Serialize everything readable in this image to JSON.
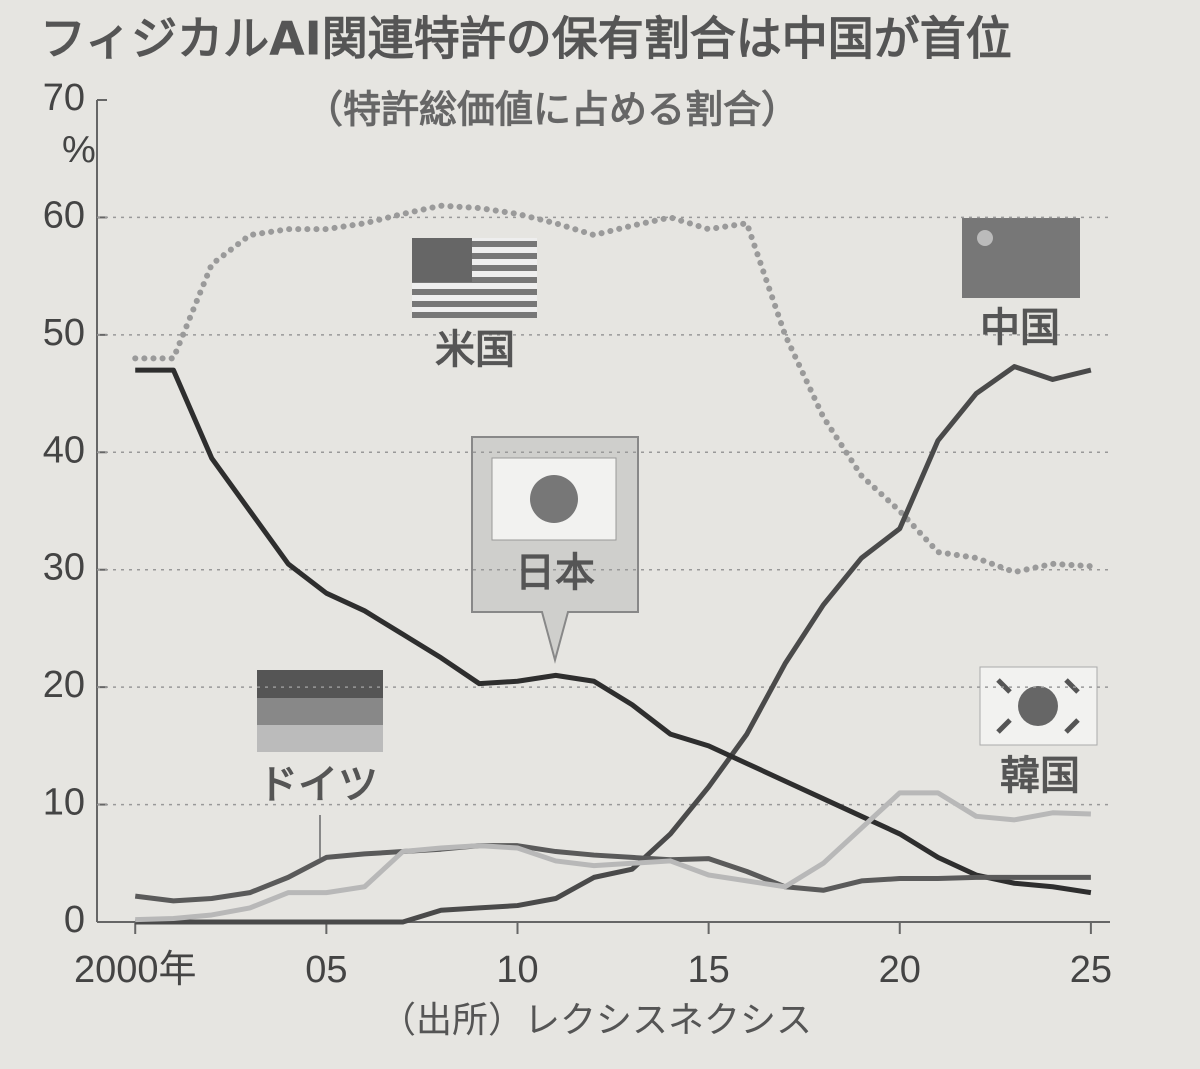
{
  "chart_data": {
    "type": "line",
    "title": "フィジカルAI関連特許の保有割合は中国が首位",
    "subtitle": "（特許総価値に占める割合）",
    "source": "（出所）レクシスネクシス",
    "y_unit": "%",
    "x": [
      2000,
      2001,
      2002,
      2003,
      2004,
      2005,
      2006,
      2007,
      2008,
      2009,
      2010,
      2011,
      2012,
      2013,
      2014,
      2015,
      2016,
      2017,
      2018,
      2019,
      2020,
      2021,
      2022,
      2023,
      2024,
      2025
    ],
    "series": [
      {
        "name": "米国",
        "color": "#9a9a9a",
        "style": "dotted",
        "values": [
          48,
          48,
          56,
          58.5,
          59,
          59,
          59.5,
          60.3,
          61,
          60.8,
          60.3,
          59.5,
          58.5,
          59.3,
          60,
          59,
          59.5,
          50,
          43,
          38,
          35,
          31.5,
          31,
          29.8,
          30.5,
          30.3
        ]
      },
      {
        "name": "中国",
        "color": "#4a4a4a",
        "style": "solid",
        "values": [
          0,
          0,
          0,
          0,
          0,
          0,
          0,
          0,
          1,
          1.2,
          1.4,
          2,
          3.8,
          4.5,
          7.5,
          11.5,
          16,
          22,
          27,
          31,
          33.5,
          41,
          45,
          47.3,
          46.2,
          47
        ]
      },
      {
        "name": "日本",
        "color": "#2e2e2e",
        "style": "solid",
        "values": [
          47,
          47,
          39.5,
          35,
          30.5,
          28,
          26.5,
          24.5,
          22.5,
          20.3,
          20.5,
          21,
          20.5,
          18.5,
          16,
          15,
          13.5,
          12,
          10.5,
          9,
          7.5,
          5.5,
          4,
          3.3,
          3,
          2.5
        ]
      },
      {
        "name": "ドイツ",
        "color": "#5a5a5a",
        "style": "solid",
        "values": [
          2.2,
          1.8,
          2,
          2.5,
          3.8,
          5.5,
          5.8,
          6,
          6.2,
          6.5,
          6.5,
          6,
          5.7,
          5.5,
          5.3,
          5.4,
          4.3,
          3,
          2.7,
          3.5,
          3.7,
          3.7,
          3.8,
          3.8,
          3.8,
          3.8
        ]
      },
      {
        "name": "韓国",
        "color": "#b8b8b8",
        "style": "solid",
        "values": [
          0.2,
          0.3,
          0.6,
          1.2,
          2.5,
          2.5,
          3,
          6,
          6.3,
          6.5,
          6.3,
          5.2,
          4.8,
          5,
          5.2,
          4,
          3.5,
          3,
          5,
          8,
          11,
          11,
          9,
          8.7,
          9.3,
          9.2
        ]
      }
    ],
    "xlim": [
      1999,
      2025.5
    ],
    "xticks": [
      {
        "value": 2000,
        "label": "2000年"
      },
      {
        "value": 2005,
        "label": "05"
      },
      {
        "value": 2010,
        "label": "10"
      },
      {
        "value": 2015,
        "label": "15"
      },
      {
        "value": 2020,
        "label": "20"
      },
      {
        "value": 2025,
        "label": "25"
      }
    ],
    "ylim": [
      0,
      70
    ],
    "yticks": [
      0,
      10,
      20,
      30,
      40,
      50,
      60,
      70
    ],
    "grid": true
  }
}
